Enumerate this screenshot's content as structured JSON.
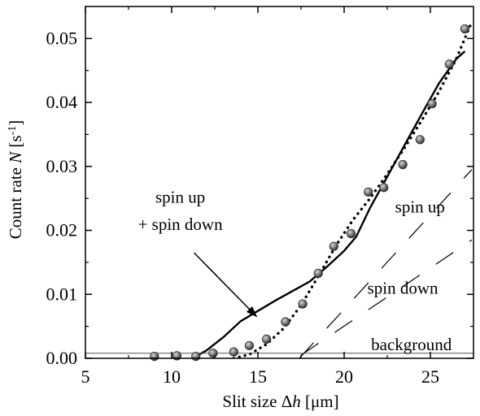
{
  "chart_data": {
    "type": "scatter",
    "xlabel": {
      "prefix": "Slit size Δ",
      "var": "h",
      "suffix": " [μm]"
    },
    "ylabel": {
      "prefix": "Count rate ",
      "var": "N",
      "suffix": " [s",
      "sup": "-1",
      "close": "]"
    },
    "xlim": [
      5,
      27.5
    ],
    "ylim": [
      0,
      0.055
    ],
    "x_ticks": [
      5,
      10,
      15,
      20,
      25
    ],
    "x_tick_labels": [
      "5",
      "10",
      "15",
      "20",
      "25"
    ],
    "y_ticks": [
      0,
      0.01,
      0.02,
      0.03,
      0.04,
      0.05
    ],
    "y_tick_labels": [
      "0.00",
      "0.01",
      "0.02",
      "0.03",
      "0.04",
      "0.05"
    ],
    "grid": false,
    "points": {
      "x": [
        9.0,
        10.3,
        11.4,
        12.4,
        13.6,
        14.5,
        15.5,
        16.6,
        17.6,
        18.5,
        19.4,
        20.4,
        21.4,
        22.3,
        23.4,
        24.4,
        25.1,
        26.1,
        27.0
      ],
      "y": [
        0.0003,
        0.0004,
        0.0003,
        0.0008,
        0.001,
        0.002,
        0.003,
        0.0057,
        0.0085,
        0.0133,
        0.0175,
        0.0195,
        0.026,
        0.0267,
        0.0303,
        0.0342,
        0.0398,
        0.046,
        0.0515
      ]
    },
    "lines": [
      {
        "id": "sum-solid",
        "style": "solid",
        "x": [
          11.2,
          12.0,
          13.0,
          14.0,
          15.0,
          16.0,
          17.0,
          18.0,
          19.0,
          20.0,
          20.7,
          21.5,
          22.5,
          23.5,
          24.5,
          25.5,
          26.5,
          27.0
        ],
        "y": [
          0.0,
          0.0012,
          0.0033,
          0.0058,
          0.0074,
          0.009,
          0.0105,
          0.012,
          0.0143,
          0.0168,
          0.019,
          0.0235,
          0.0284,
          0.0333,
          0.0382,
          0.043,
          0.0468,
          0.048
        ]
      },
      {
        "id": "sum-dotted",
        "style": "dotted",
        "x": [
          13.6,
          14.5,
          15.5,
          16.5,
          17.5,
          18.5,
          19.5,
          20.5,
          21.5,
          22.5,
          23.5,
          24.5,
          25.5,
          26.5,
          27.4
        ],
        "y": [
          0.0,
          0.0006,
          0.0022,
          0.0047,
          0.0083,
          0.0128,
          0.0175,
          0.0216,
          0.025,
          0.0288,
          0.0329,
          0.0372,
          0.0417,
          0.0468,
          0.0526
        ]
      },
      {
        "id": "spin-up",
        "style": "dashed",
        "x": [
          17.4,
          27.4
        ],
        "y": [
          0.0,
          0.0295
        ]
      },
      {
        "id": "spin-down",
        "style": "dashed",
        "x": [
          17.5,
          27.4
        ],
        "y": [
          0.0005,
          0.0185
        ]
      },
      {
        "id": "background",
        "style": "solid-thin",
        "x": [
          5.0,
          27.5
        ],
        "y": [
          0.0008,
          0.0008
        ]
      }
    ],
    "annotations": [
      {
        "id": "sum-label-line1",
        "text": "spin up",
        "x": 10.5,
        "y": 0.0243
      },
      {
        "id": "sum-label-line2",
        "text": "+ spin down",
        "x": 10.5,
        "y": 0.0201
      },
      {
        "id": "spin-up-label",
        "text": "spin up",
        "x": 24.4,
        "y": 0.0228
      },
      {
        "id": "spin-down-label",
        "text": "spin down",
        "x": 23.4,
        "y": 0.0101
      },
      {
        "id": "background-label",
        "text": "background",
        "x": 23.9,
        "y": 0.0013
      }
    ],
    "arrow": {
      "from": [
        11.3,
        0.0165
      ],
      "to": [
        14.9,
        0.0066
      ]
    }
  }
}
